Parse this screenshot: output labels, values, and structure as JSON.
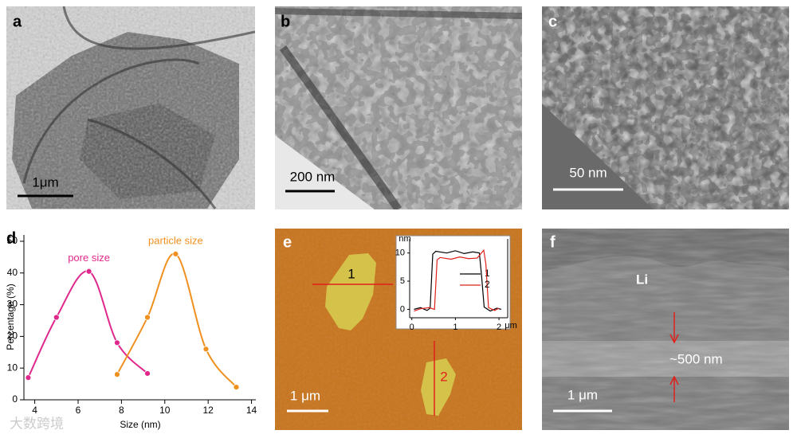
{
  "panels": {
    "a": {
      "label": "a",
      "scale_bar": "1μm"
    },
    "b": {
      "label": "b",
      "scale_bar": "200 nm"
    },
    "c": {
      "label": "c",
      "scale_bar": "50 nm"
    },
    "d": {
      "label": "d"
    },
    "e": {
      "label": "e",
      "scale_bar": "1 μm",
      "line_labels": [
        "1",
        "2"
      ]
    },
    "f": {
      "label": "f",
      "scale_bar": "1 μm",
      "annotations": [
        "Li",
        "~500 nm"
      ]
    },
    "watermark": "大数跨境"
  },
  "chart_data": [
    {
      "type": "line",
      "x_label": "Size (nm)",
      "y_label": "Percentage (%)",
      "xlim": [
        3.5,
        14.2
      ],
      "ylim": [
        0,
        52
      ],
      "xticks": [
        4,
        6,
        8,
        10,
        12,
        14
      ],
      "yticks": [
        0,
        10,
        20,
        30,
        40,
        50
      ],
      "smooth": true,
      "markers": true,
      "series": [
        {
          "name": "pore size",
          "color": "#e0288c",
          "x": [
            3.7,
            5,
            6.5,
            7.8,
            9.2
          ],
          "values": [
            7,
            26,
            40.5,
            18,
            8.3
          ]
        },
        {
          "name": "particle size",
          "color": "#f0901e",
          "x": [
            7.8,
            9.2,
            10.5,
            11.9,
            13.3
          ],
          "values": [
            8,
            26,
            46,
            16,
            4
          ]
        }
      ]
    },
    {
      "type": "line",
      "x_label": "μm",
      "y_label": "nm",
      "xlim": [
        -0.05,
        2.2
      ],
      "ylim": [
        -1.5,
        12.5
      ],
      "xticks": [
        0,
        1,
        2
      ],
      "yticks": [
        0,
        5,
        10
      ],
      "smooth": false,
      "markers": false,
      "legend": "right",
      "series": [
        {
          "name": "1",
          "color": "#000000",
          "x": [
            0.05,
            0.2,
            0.35,
            0.42,
            0.48,
            0.55,
            0.8,
            1.0,
            1.2,
            1.4,
            1.55,
            1.6,
            1.66,
            1.8,
            1.95,
            2.05
          ],
          "values": [
            0,
            0.3,
            -0.2,
            0.2,
            9.8,
            10.3,
            10,
            10.4,
            9.9,
            10.2,
            10,
            6,
            0.4,
            -0.3,
            0.2,
            0
          ]
        },
        {
          "name": "2",
          "color": "#e0201c",
          "x": [
            0.05,
            0.2,
            0.4,
            0.52,
            0.58,
            0.65,
            0.9,
            1.1,
            1.3,
            1.5,
            1.65,
            1.7,
            1.76,
            1.9,
            2.0
          ],
          "values": [
            -0.3,
            0.1,
            0.3,
            0,
            8.8,
            9.2,
            8.9,
            9.3,
            9,
            9.1,
            10.5,
            8,
            0.3,
            -0.2,
            0.2
          ]
        }
      ]
    }
  ]
}
